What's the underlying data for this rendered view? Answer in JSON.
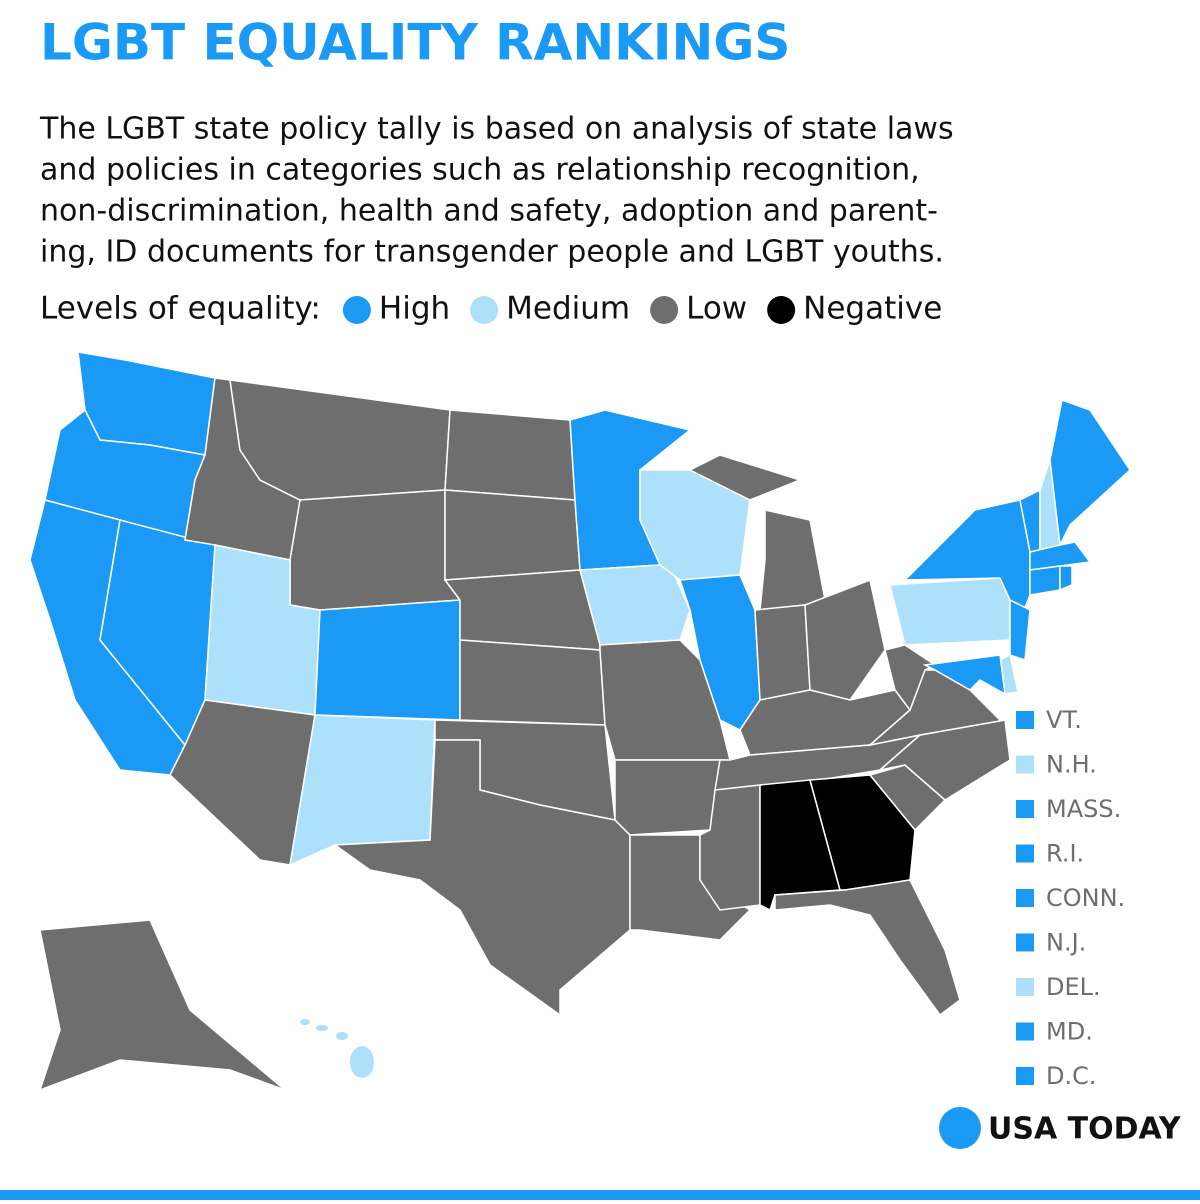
{
  "header": {
    "title": "LGBT EQUALITY RANKINGS",
    "description": [
      "The LGBT state policy tally is based on analysis of state laws",
      "and policies in categories such as relationship recognition,",
      "non-discrimination, health and safety, adoption and parent-",
      "ing, ID documents for transgender people and LGBT youths."
    ]
  },
  "legend": {
    "label": "Levels of equality:",
    "items": [
      {
        "name": "High",
        "color": "#1a9af5"
      },
      {
        "name": "Medium",
        "color": "#ade0fb"
      },
      {
        "name": "Low",
        "color": "#6e6e6e"
      },
      {
        "name": "Negative",
        "color": "#000000"
      }
    ]
  },
  "small_states": [
    {
      "label": "VT.",
      "color": "#1a9af5"
    },
    {
      "label": "N.H.",
      "color": "#ade0fb"
    },
    {
      "label": "MASS.",
      "color": "#1a9af5"
    },
    {
      "label": "R.I.",
      "color": "#1a9af5"
    },
    {
      "label": "CONN.",
      "color": "#1a9af5"
    },
    {
      "label": "N.J.",
      "color": "#1a9af5"
    },
    {
      "label": "DEL.",
      "color": "#ade0fb"
    },
    {
      "label": "MD.",
      "color": "#1a9af5"
    },
    {
      "label": "D.C.",
      "color": "#1a9af5"
    }
  ],
  "footer": {
    "logo": "USA TODAY"
  }
}
